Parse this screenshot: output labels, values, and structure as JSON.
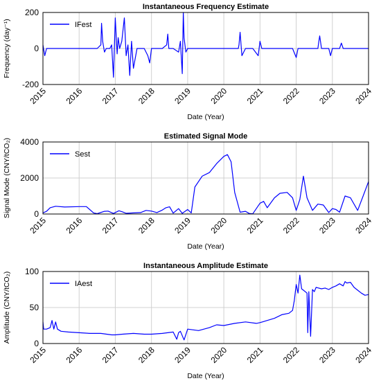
{
  "chart_data": [
    {
      "type": "line",
      "title": "Instantaneous Frequency Estimate",
      "xlabel": "Date (Year)",
      "ylabel": "Frequency (day⁻¹)",
      "xlim": [
        2015,
        2024
      ],
      "ylim": [
        -200,
        200
      ],
      "xticks": [
        "2015",
        "2016",
        "2017",
        "2018",
        "2019",
        "2020",
        "2021",
        "2022",
        "2023",
        "2024"
      ],
      "yticks": [
        "-200",
        "0",
        "200"
      ],
      "grid": true,
      "legend": "top-left",
      "series": [
        {
          "name": "IFest",
          "color": "#0000ff",
          "x": [
            2015.0,
            2015.05,
            2015.1,
            2015.5,
            2016.0,
            2016.5,
            2016.6,
            2016.62,
            2016.65,
            2016.7,
            2016.75,
            2016.85,
            2016.9,
            2016.95,
            2017.0,
            2017.05,
            2017.08,
            2017.12,
            2017.18,
            2017.25,
            2017.3,
            2017.35,
            2017.4,
            2017.45,
            2017.5,
            2017.6,
            2017.8,
            2017.9,
            2017.95,
            2018.0,
            2018.1,
            2018.3,
            2018.42,
            2018.45,
            2018.48,
            2018.6,
            2018.75,
            2018.8,
            2018.85,
            2018.88,
            2018.9,
            2018.95,
            2019.0,
            2019.05,
            2019.2,
            2019.5,
            2020.0,
            2020.2,
            2020.4,
            2020.42,
            2020.45,
            2020.5,
            2020.6,
            2020.8,
            2020.95,
            2021.0,
            2021.05,
            2021.2,
            2021.5,
            2021.9,
            2022.0,
            2022.05,
            2022.1,
            2022.2,
            2022.4,
            2022.6,
            2022.62,
            2022.65,
            2022.7,
            2022.9,
            2022.95,
            2023.0,
            2023.2,
            2023.25,
            2023.3,
            2023.5,
            2023.8,
            2024.0
          ],
          "y": [
            20,
            -40,
            0,
            0,
            0,
            0,
            20,
            140,
            40,
            -20,
            0,
            0,
            20,
            -160,
            170,
            -30,
            60,
            0,
            40,
            170,
            -40,
            20,
            -150,
            40,
            -110,
            0,
            0,
            -40,
            -80,
            0,
            0,
            0,
            20,
            80,
            0,
            0,
            -20,
            40,
            -140,
            200,
            60,
            -20,
            0,
            0,
            0,
            0,
            0,
            0,
            0,
            20,
            90,
            -40,
            0,
            0,
            -40,
            40,
            0,
            0,
            0,
            0,
            -50,
            0,
            0,
            0,
            0,
            0,
            30,
            70,
            0,
            0,
            -40,
            0,
            0,
            30,
            0,
            0,
            0,
            0
          ]
        }
      ]
    },
    {
      "type": "line",
      "title": "Estimated Signal Mode",
      "xlabel": "Date (Year)",
      "ylabel": "Signal Mode (CNY/tCO₂)",
      "xlim": [
        2015,
        2024
      ],
      "ylim": [
        0,
        4000
      ],
      "xticks": [
        "2015",
        "2016",
        "2017",
        "2018",
        "2019",
        "2020",
        "2021",
        "2022",
        "2023",
        "2024"
      ],
      "yticks": [
        "0",
        "2000",
        "4000"
      ],
      "grid": true,
      "legend": "top-left",
      "series": [
        {
          "name": "Sest",
          "color": "#0000ff",
          "x": [
            2015.0,
            2015.1,
            2015.2,
            2015.35,
            2015.6,
            2016.0,
            2016.2,
            2016.4,
            2016.5,
            2016.7,
            2016.8,
            2016.95,
            2017.1,
            2017.2,
            2017.3,
            2017.5,
            2017.7,
            2017.85,
            2018.0,
            2018.15,
            2018.3,
            2018.4,
            2018.5,
            2018.6,
            2018.75,
            2018.85,
            2019.0,
            2019.1,
            2019.2,
            2019.4,
            2019.6,
            2019.8,
            2020.0,
            2020.1,
            2020.2,
            2020.3,
            2020.45,
            2020.6,
            2020.7,
            2020.8,
            2021.0,
            2021.1,
            2021.2,
            2021.4,
            2021.55,
            2021.75,
            2021.9,
            2022.0,
            2022.1,
            2022.2,
            2022.3,
            2022.45,
            2022.6,
            2022.75,
            2022.9,
            2023.0,
            2023.1,
            2023.2,
            2023.35,
            2023.5,
            2023.7,
            2023.85,
            2024.0
          ],
          "y": [
            60,
            150,
            350,
            430,
            390,
            410,
            410,
            60,
            20,
            150,
            160,
            30,
            180,
            120,
            40,
            60,
            80,
            200,
            160,
            80,
            220,
            350,
            400,
            50,
            300,
            40,
            250,
            60,
            1500,
            2100,
            2300,
            2800,
            3200,
            3300,
            2900,
            1200,
            100,
            150,
            30,
            10,
            600,
            700,
            350,
            900,
            1150,
            1200,
            900,
            200,
            800,
            2100,
            900,
            200,
            550,
            500,
            80,
            300,
            250,
            100,
            1000,
            900,
            200,
            1000,
            1800
          ]
        }
      ]
    },
    {
      "type": "line",
      "title": "Instantaneous Amplitude Estimate",
      "xlabel": "Date (Year)",
      "ylabel": "Amplitude (CNY/tCO₂)",
      "xlim": [
        2015,
        2024
      ],
      "ylim": [
        0,
        100
      ],
      "xticks": [
        "2015",
        "2016",
        "2017",
        "2018",
        "2019",
        "2020",
        "2021",
        "2022",
        "2023",
        "2024"
      ],
      "yticks": [
        "0",
        "50",
        "100"
      ],
      "grid": true,
      "legend": "top-left",
      "series": [
        {
          "name": "IAest",
          "color": "#0000ff",
          "x": [
            2015.0,
            2015.02,
            2015.1,
            2015.2,
            2015.25,
            2015.3,
            2015.35,
            2015.4,
            2015.5,
            2015.7,
            2016.0,
            2016.3,
            2016.6,
            2016.9,
            2017.0,
            2017.2,
            2017.5,
            2017.8,
            2018.0,
            2018.3,
            2018.6,
            2018.7,
            2018.75,
            2018.8,
            2018.9,
            2019.0,
            2019.3,
            2019.6,
            2019.8,
            2020.0,
            2020.3,
            2020.6,
            2020.9,
            2021.0,
            2021.2,
            2021.4,
            2021.6,
            2021.8,
            2021.9,
            2021.95,
            2022.0,
            2022.05,
            2022.1,
            2022.15,
            2022.2,
            2022.3,
            2022.32,
            2022.35,
            2022.4,
            2022.45,
            2022.5,
            2022.55,
            2022.7,
            2022.8,
            2022.9,
            2023.0,
            2023.1,
            2023.2,
            2023.3,
            2023.35,
            2023.4,
            2023.5,
            2023.6,
            2023.7,
            2023.8,
            2023.9,
            2024.0
          ],
          "y": [
            30,
            20,
            20,
            22,
            32,
            20,
            30,
            20,
            17,
            16,
            15,
            14,
            14,
            12,
            12,
            13,
            14,
            13,
            13,
            14,
            16,
            6,
            15,
            17,
            5,
            20,
            18,
            22,
            26,
            25,
            28,
            30,
            28,
            29,
            32,
            35,
            40,
            42,
            46,
            60,
            82,
            70,
            95,
            76,
            74,
            70,
            15,
            72,
            10,
            75,
            72,
            78,
            76,
            77,
            75,
            78,
            80,
            83,
            80,
            86,
            84,
            85,
            78,
            74,
            70,
            67,
            68
          ]
        }
      ]
    }
  ]
}
